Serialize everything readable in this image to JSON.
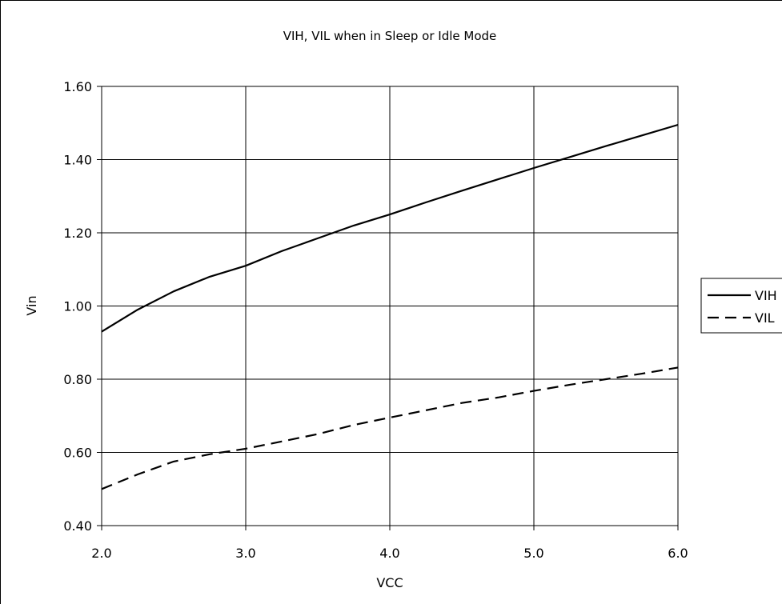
{
  "chart_data": {
    "type": "line",
    "title": "VIH, VIL when in Sleep or Idle Mode",
    "xlabel": "VCC",
    "ylabel": "Vin",
    "xlim": [
      2.0,
      6.0
    ],
    "ylim": [
      0.4,
      1.6
    ],
    "x_ticks": [
      "2.0",
      "3.0",
      "4.0",
      "5.0",
      "6.0"
    ],
    "y_ticks": [
      "0.40",
      "0.60",
      "0.80",
      "1.00",
      "1.20",
      "1.40",
      "1.60"
    ],
    "grid": true,
    "legend_position": "right",
    "x": [
      2.0,
      2.25,
      2.5,
      2.75,
      3.0,
      3.25,
      3.5,
      3.75,
      4.0,
      4.25,
      4.5,
      4.75,
      5.0,
      5.25,
      5.5,
      5.75,
      6.0
    ],
    "series": [
      {
        "name": "VIH",
        "style": "solid",
        "color": "#000000",
        "values": [
          0.93,
          0.99,
          1.04,
          1.08,
          1.11,
          1.15,
          1.185,
          1.22,
          1.25,
          1.283,
          1.315,
          1.346,
          1.377,
          1.407,
          1.437,
          1.466,
          1.495
        ]
      },
      {
        "name": "VIL",
        "style": "dashed",
        "color": "#000000",
        "values": [
          0.5,
          0.54,
          0.575,
          0.595,
          0.61,
          0.63,
          0.65,
          0.675,
          0.695,
          0.715,
          0.735,
          0.75,
          0.768,
          0.785,
          0.8,
          0.815,
          0.832
        ]
      }
    ]
  }
}
